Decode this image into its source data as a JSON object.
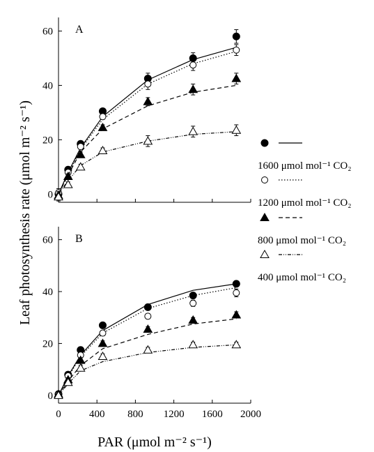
{
  "chart_data": {
    "type": "scatter",
    "ylabel": "Leaf photosynthesis rate (μmol m⁻² s⁻¹)",
    "xlabel": "PAR (μmol m⁻² s⁻¹)",
    "legend_placement": "right",
    "legend": [
      {
        "series": "1600",
        "label": "1600 μmol mol⁻¹ CO₂"
      },
      {
        "series": "1200",
        "label": "1200 μmol mol⁻¹ CO₂"
      },
      {
        "series": "800",
        "label": "800 μmol mol⁻¹ CO₂"
      },
      {
        "series": "400",
        "label": "400 μmol mol⁻¹ CO₂"
      }
    ],
    "xlim": [
      0,
      2000
    ],
    "xticks": [
      0,
      400,
      800,
      1200,
      1600,
      2000
    ],
    "panels": [
      {
        "letter": "A",
        "ylim": [
          -3,
          65
        ],
        "yticks": [
          0,
          20,
          40,
          60
        ],
        "series": [
          {
            "key": "1600",
            "marker": "filled-circle",
            "line": "solid",
            "x": [
              0,
              100,
              230,
              460,
              930,
              1400,
              1850
            ],
            "y": [
              0,
              9,
              18.5,
              30.5,
              42.5,
              50,
              58
            ],
            "err": [
              1.5,
              1,
              1,
              1,
              2,
              2,
              2.5
            ],
            "fit": [
              0,
              8,
              17,
              28.5,
              42,
              49.5,
              54
            ]
          },
          {
            "key": "1200",
            "marker": "open-circle",
            "line": "dotted",
            "x": [
              0,
              100,
              230,
              460,
              930,
              1400,
              1850
            ],
            "y": [
              0.5,
              8,
              17.5,
              28.5,
              40.5,
              47.5,
              53
            ],
            "err": [
              1.5,
              1,
              1,
              1,
              2,
              2,
              2
            ],
            "fit": [
              0,
              7.5,
              16.5,
              27.5,
              40.5,
              48,
              52.5
            ]
          },
          {
            "key": "800",
            "marker": "filled-triangle",
            "line": "dashed",
            "x": [
              0,
              100,
              230,
              460,
              930,
              1400,
              1850
            ],
            "y": [
              -0.5,
              6.5,
              14.5,
              24.5,
              34,
              38.5,
              42.5
            ],
            "err": [
              1.5,
              1,
              1,
              1,
              1.5,
              2,
              2
            ],
            "fit": [
              0,
              7,
              15.5,
              24,
              32.5,
              37.5,
              40
            ]
          },
          {
            "key": "400",
            "marker": "open-triangle",
            "line": "dash-dot-dot",
            "x": [
              0,
              100,
              230,
              460,
              930,
              1400,
              1850
            ],
            "y": [
              -1,
              3.5,
              10,
              16,
              19.5,
              23,
              23.5
            ],
            "err": [
              1.5,
              1,
              1,
              1,
              2,
              2,
              2
            ],
            "fit": [
              0,
              5,
              10.5,
              15.5,
              19.5,
              22,
              23
            ]
          }
        ]
      },
      {
        "letter": "B",
        "ylim": [
          -3,
          65
        ],
        "yticks": [
          0,
          20,
          40,
          60
        ],
        "series": [
          {
            "key": "1600",
            "marker": "filled-circle",
            "line": "solid",
            "x": [
              0,
              100,
              230,
              460,
              930,
              1400,
              1850
            ],
            "y": [
              0.5,
              8,
              17.5,
              27,
              34,
              38.5,
              43
            ],
            "err": [
              0.8,
              0.8,
              1,
              1,
              1,
              1,
              1
            ],
            "fit": [
              0,
              7.5,
              15.5,
              25,
              35,
              40.5,
              43
            ]
          },
          {
            "key": "1200",
            "marker": "open-circle",
            "line": "dotted",
            "x": [
              0,
              100,
              230,
              460,
              930,
              1400,
              1850
            ],
            "y": [
              0.5,
              7.5,
              15.5,
              24,
              30.5,
              35.5,
              39.5
            ],
            "err": [
              0.8,
              0.8,
              1,
              1,
              1,
              1.2,
              1.5
            ],
            "fit": [
              0,
              7,
              15,
              24,
              33.5,
              38.5,
              41.5
            ]
          },
          {
            "key": "800",
            "marker": "filled-triangle",
            "line": "dashed",
            "x": [
              0,
              100,
              230,
              460,
              930,
              1400,
              1850
            ],
            "y": [
              0.5,
              6,
              13.5,
              20,
              25.5,
              29,
              31
            ],
            "err": [
              0.8,
              0.8,
              1,
              1,
              1,
              1,
              1.2
            ],
            "fit": [
              0,
              5.5,
              11.5,
              18,
              23.5,
              27.5,
              29.5
            ]
          },
          {
            "key": "400",
            "marker": "open-triangle",
            "line": "dash-dot-dot",
            "x": [
              0,
              100,
              230,
              460,
              930,
              1400,
              1850
            ],
            "y": [
              0,
              5,
              10.5,
              15,
              17.5,
              19.5,
              19.5
            ],
            "err": [
              0.8,
              0.8,
              1,
              1,
              1,
              1,
              1
            ],
            "fit": [
              0,
              4.5,
              9.5,
              13,
              16.5,
              18.5,
              19.5
            ]
          }
        ]
      }
    ]
  }
}
